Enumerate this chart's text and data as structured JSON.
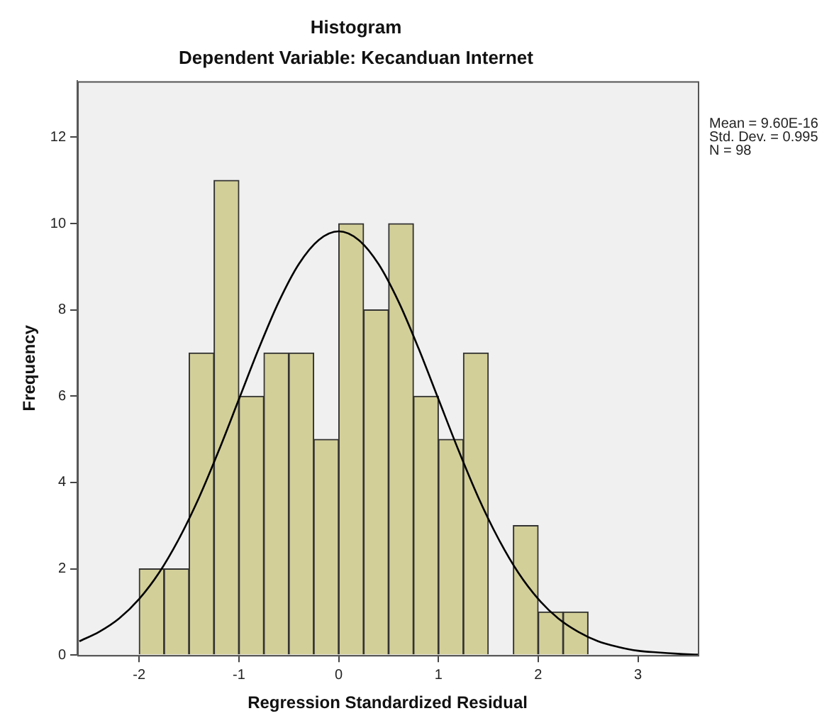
{
  "chart_data": {
    "type": "histogram",
    "title": "Histogram",
    "subtitle": "Dependent Variable: Kecanduan Internet",
    "xlabel": "Regression Standardized Residual",
    "ylabel": "Frequency",
    "bins": [
      -2,
      -1.75,
      -1.5,
      -1.25,
      -1,
      -0.75,
      -0.5,
      -0.25,
      0,
      0.25,
      0.5,
      0.75,
      1,
      1.25,
      1.5,
      1.75,
      2,
      2.25,
      2.5
    ],
    "values": [
      2,
      2,
      7,
      11,
      6,
      7,
      7,
      5,
      10,
      8,
      10,
      6,
      5,
      7,
      0,
      3,
      1,
      1
    ],
    "color": "#d3cf99",
    "series": [
      {
        "type": "line",
        "color": "#000000",
        "x": [
          -2.6,
          -2.4,
          -2.2,
          -2,
          -1.8,
          -1.6,
          -1.4,
          -1.2,
          -1,
          -0.8,
          -0.6,
          -0.4,
          -0.2,
          0,
          0.2,
          0.4,
          0.6,
          0.8,
          1,
          1.2,
          1.4,
          1.6,
          1.8,
          2,
          2.2,
          2.4,
          2.6,
          2.8,
          3,
          3.2,
          3.4,
          3.6
        ],
        "values": [
          0.32,
          0.54,
          0.85,
          1.3,
          1.91,
          2.7,
          3.65,
          4.75,
          5.93,
          7.11,
          8.19,
          9.06,
          9.62,
          9.82,
          9.62,
          9.06,
          8.19,
          7.11,
          5.93,
          4.75,
          3.65,
          2.7,
          1.91,
          1.3,
          0.85,
          0.54,
          0.32,
          0.19,
          0.1,
          0.06,
          0.03,
          0.01
        ]
      }
    ],
    "xlim": [
      -2.62,
      3.6
    ],
    "ylim": [
      0,
      13.3
    ],
    "xticks": [
      -2,
      -1,
      0,
      1,
      2,
      3
    ],
    "yticks": [
      0,
      2,
      4,
      6,
      8,
      10,
      12
    ],
    "grid": false,
    "annotations": [
      "Mean = 9.60E-16",
      "Std. Dev. = 0.995",
      "N = 98"
    ]
  }
}
